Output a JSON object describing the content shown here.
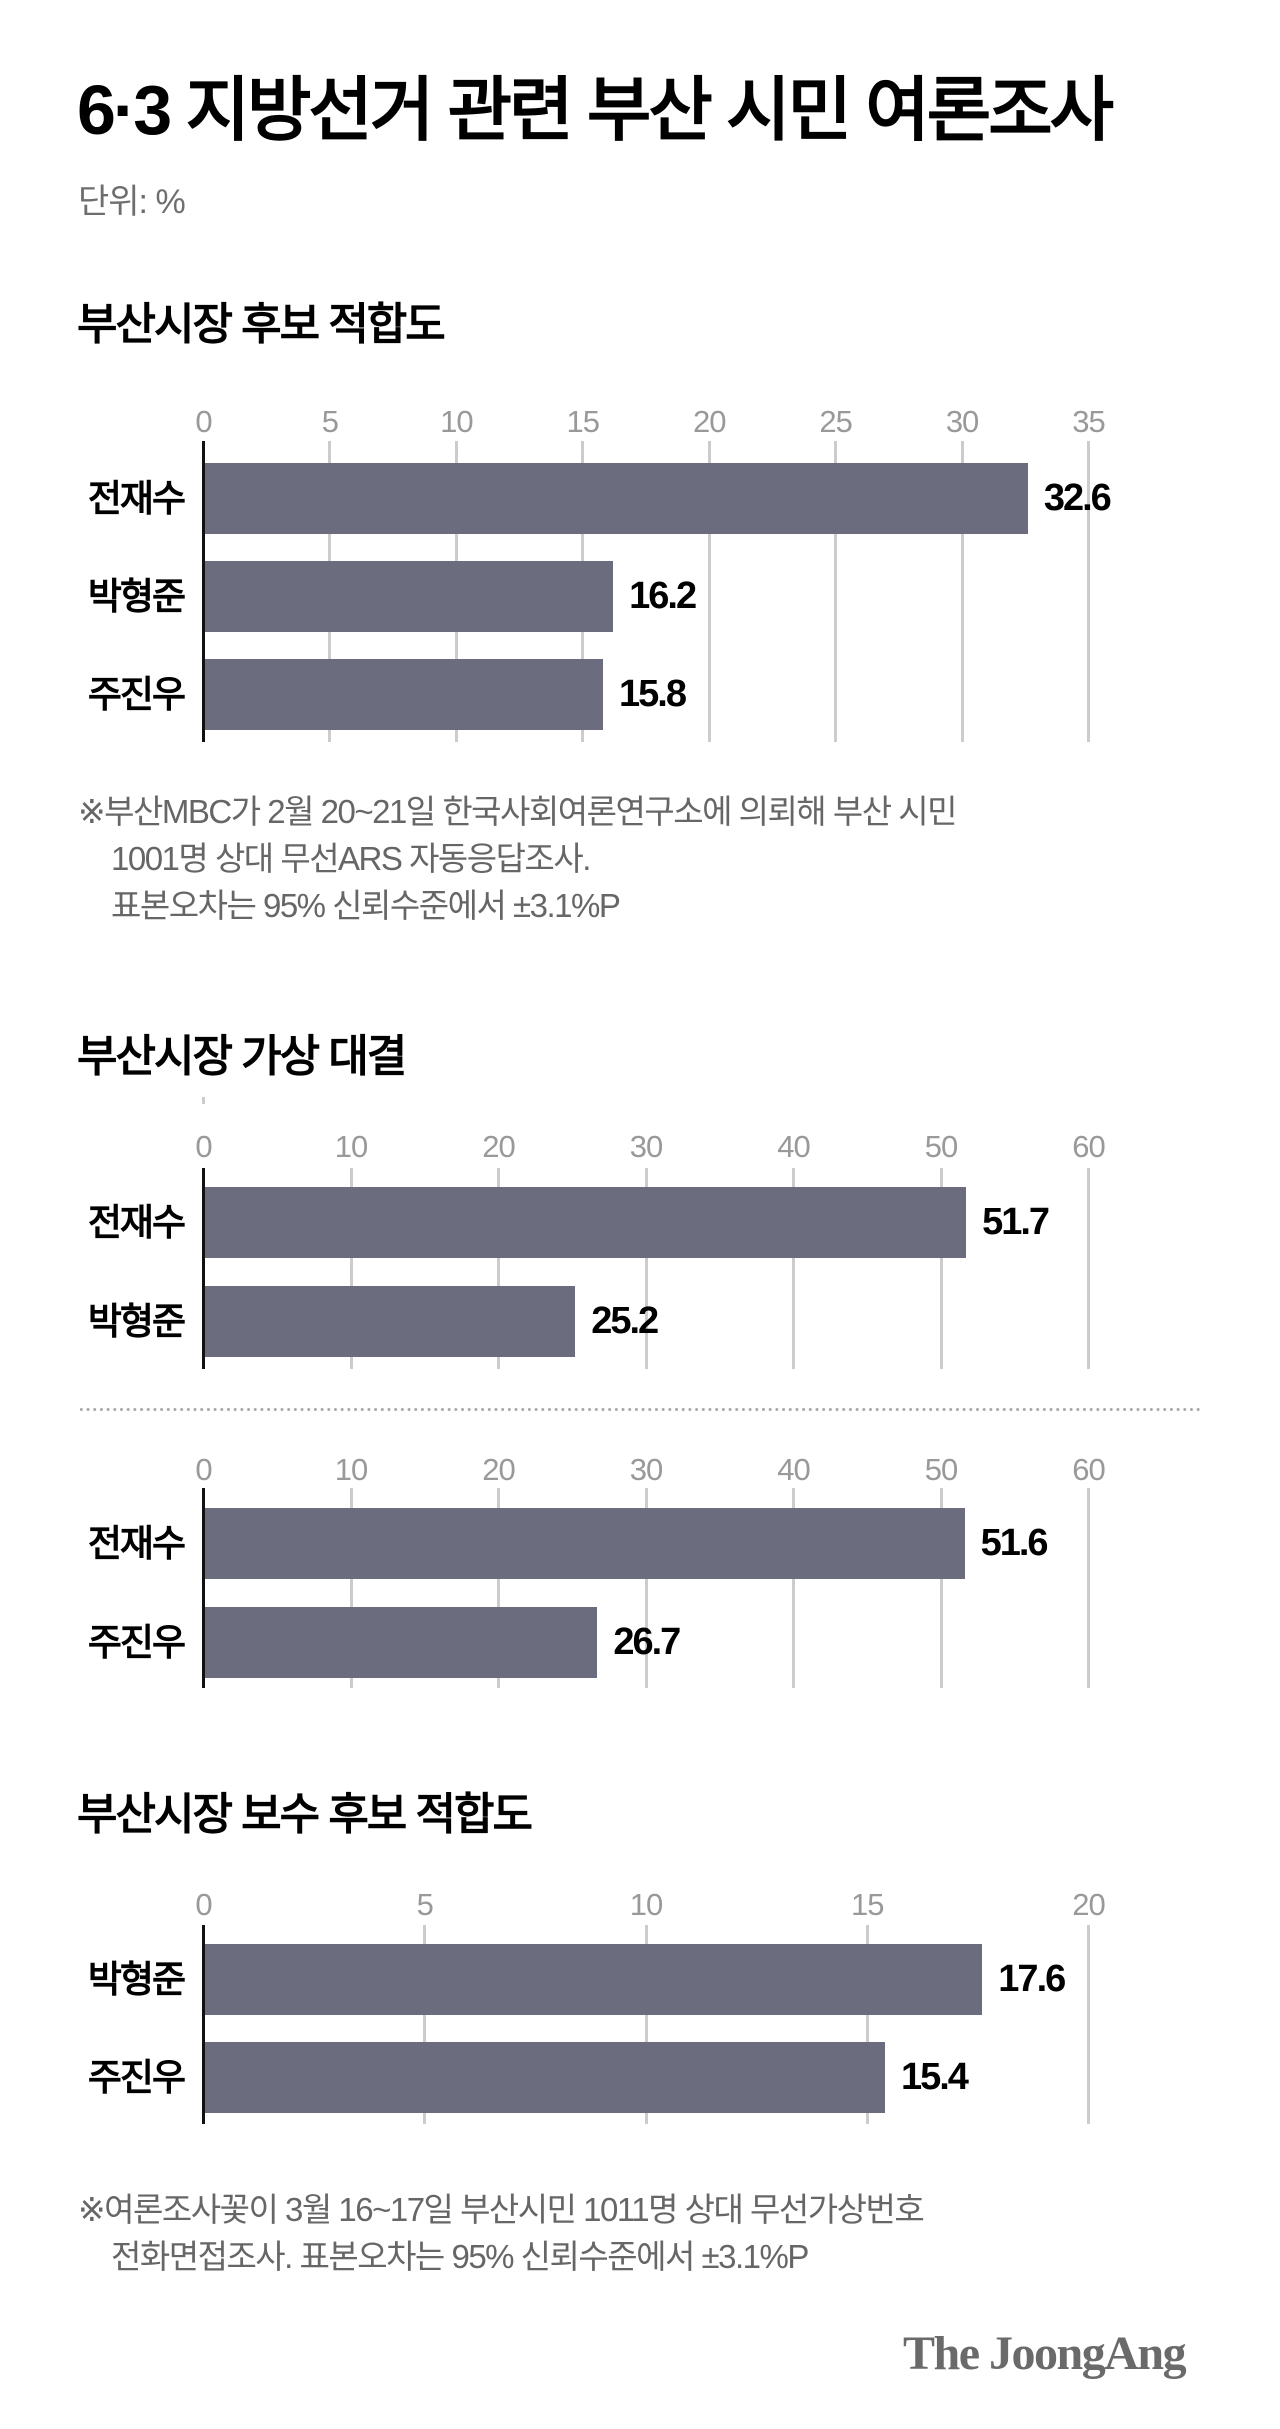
{
  "header": {
    "title": "6·3 지방선거 관련 부산 시민 여론조사",
    "unit": "단위: %"
  },
  "colors": {
    "bar": "#6b6c7d",
    "grid": "#cccccc",
    "tick_text": "#999999",
    "note_text": "#666666",
    "logo": "#6a6a6a"
  },
  "sections": [
    {
      "title": "부산시장 후보 적합도",
      "note_lines": [
        "※부산MBC가 2월 20~21일 한국사회여론연구소에 의뢰해 부산 시민",
        "1001명 상대 무선ARS 자동응답조사.",
        "표본오차는 95% 신뢰수준에서 ±3.1%P"
      ]
    },
    {
      "title": "부산시장 가상 대결"
    },
    {
      "title": "부산시장 보수 후보 적합도",
      "note_lines": [
        "※여론조사꽃이 3월 16~17일 부산시민 1011명 상대 무선가상번호",
        "전화면접조사. 표본오차는 95% 신뢰수준에서 ±3.1%P"
      ]
    }
  ],
  "footer": {
    "logo": "The JoongAng"
  },
  "chart_data": [
    {
      "type": "bar",
      "orientation": "horizontal",
      "title": "부산시장 후보 적합도",
      "unit": "%",
      "categories": [
        "전재수",
        "박형준",
        "주진우"
      ],
      "values": [
        32.6,
        16.2,
        15.8
      ],
      "value_labels": [
        "32.6",
        "16.2",
        "15.8"
      ],
      "ticks": [
        0,
        5,
        10,
        15,
        20,
        25,
        30,
        35
      ],
      "tick_labels": [
        "0",
        "5",
        "10",
        "15",
        "20",
        "25",
        "30",
        "35"
      ],
      "xlim": [
        0,
        35
      ],
      "grid": true
    },
    {
      "type": "bar",
      "orientation": "horizontal",
      "title": "부산시장 가상 대결 (전재수 vs 박형준)",
      "unit": "%",
      "categories": [
        "전재수",
        "박형준"
      ],
      "values": [
        51.7,
        25.2
      ],
      "value_labels": [
        "51.7",
        "25.2"
      ],
      "ticks": [
        0,
        10,
        20,
        30,
        40,
        50,
        60
      ],
      "tick_labels": [
        "0",
        "10",
        "20",
        "30",
        "40",
        "50",
        "60"
      ],
      "xlim": [
        0,
        60
      ],
      "grid": true
    },
    {
      "type": "bar",
      "orientation": "horizontal",
      "title": "부산시장 가상 대결 (전재수 vs 주진우)",
      "unit": "%",
      "categories": [
        "전재수",
        "주진우"
      ],
      "values": [
        51.6,
        26.7
      ],
      "value_labels": [
        "51.6",
        "26.7"
      ],
      "ticks": [
        0,
        10,
        20,
        30,
        40,
        50,
        60
      ],
      "tick_labels": [
        "0",
        "10",
        "20",
        "30",
        "40",
        "50",
        "60"
      ],
      "xlim": [
        0,
        60
      ],
      "grid": true
    },
    {
      "type": "bar",
      "orientation": "horizontal",
      "title": "부산시장 보수 후보 적합도",
      "unit": "%",
      "categories": [
        "박형준",
        "주진우"
      ],
      "values": [
        17.6,
        15.4
      ],
      "value_labels": [
        "17.6",
        "15.4"
      ],
      "ticks": [
        0,
        5,
        10,
        15,
        20
      ],
      "tick_labels": [
        "0",
        "5",
        "10",
        "15",
        "20"
      ],
      "xlim": [
        0,
        20
      ],
      "grid": true
    }
  ]
}
